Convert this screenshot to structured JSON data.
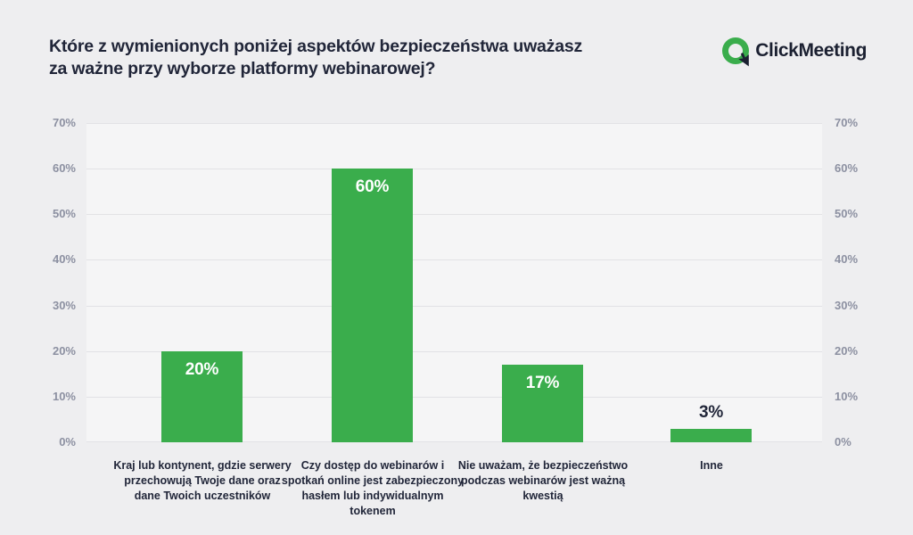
{
  "logo": {
    "brand": "ClickMeeting",
    "icon": "clickmeeting-ring-cursor-icon",
    "green": "#3aad4c",
    "dark": "#1b2031"
  },
  "colors": {
    "page_background": "#eeeef0",
    "plot_background": "#f5f5f6",
    "gridline": "#e2e2e5",
    "bar": "#3aad4c",
    "title_text": "#212639",
    "axis_text": "#8c90a1",
    "value_label_inside": "#ffffff",
    "value_label_outside": "#212639"
  },
  "chart_data": {
    "type": "bar",
    "title": "Które z wymienionych poniżej aspektów bezpieczeństwa uważasz za ważne przy wyborze platformy webinarowej?",
    "categories": [
      "Kraj lub kontynent, gdzie serwery przechowują Twoje dane oraz dane Twoich uczestników",
      "Czy dostęp do webinarów i spotkań online jest zabezpieczony hasłem lub indywidualnym tokenem",
      "Nie uważam, że bezpieczeństwo podczas webinarów jest ważną kwestią",
      "Inne"
    ],
    "values": [
      20,
      60,
      17,
      3
    ],
    "value_labels": [
      "20%",
      "60%",
      "17%",
      "3%"
    ],
    "xlabel": "",
    "ylabel": "",
    "ylim": [
      0,
      70
    ],
    "ytick_values": [
      0,
      10,
      20,
      30,
      40,
      50,
      60,
      70
    ],
    "yticks": [
      "0%",
      "10%",
      "20%",
      "30%",
      "40%",
      "50%",
      "60%",
      "70%"
    ],
    "grid": true,
    "dual_y_axis": true,
    "legend": "none",
    "bar_color": "#3aad4c"
  }
}
